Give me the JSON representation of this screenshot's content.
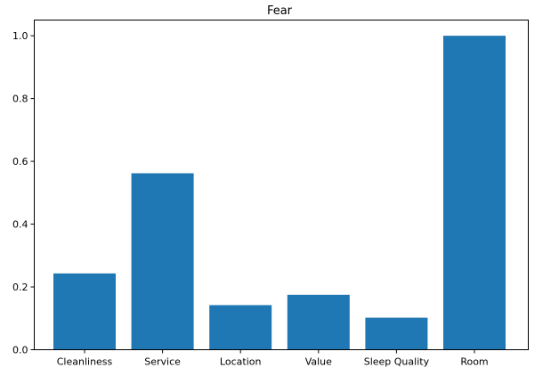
{
  "chart_data": {
    "type": "bar",
    "title": "Fear",
    "xlabel": "",
    "ylabel": "",
    "categories": [
      "Cleanliness",
      "Service",
      "Location",
      "Value",
      "Sleep Quality",
      "Room"
    ],
    "values": [
      0.243,
      0.562,
      0.142,
      0.175,
      0.102,
      1.0
    ],
    "ylim": [
      0,
      1.05
    ],
    "yticks": [
      0.0,
      0.2,
      0.4,
      0.6,
      0.8,
      1.0
    ],
    "ytick_labels": [
      "0.0",
      "0.2",
      "0.4",
      "0.6",
      "0.8",
      "1.0"
    ],
    "bar_color": "#1f77b4",
    "grid": false,
    "legend": "none"
  }
}
